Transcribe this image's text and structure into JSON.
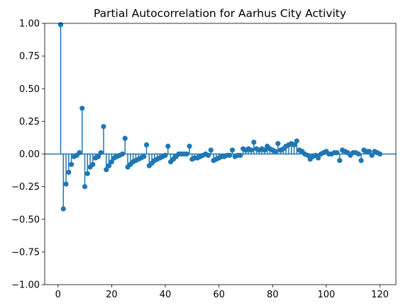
{
  "chart_data": {
    "type": "stem",
    "title": "Partial Autocorrelation for Aarhus City Activity",
    "xlabel": "",
    "ylabel": "",
    "xlim": [
      -4.95,
      125.95
    ],
    "ylim": [
      -1.0,
      1.0
    ],
    "xticks": [
      0,
      20,
      40,
      60,
      80,
      100,
      120
    ],
    "yticks": [
      -1.0,
      -0.75,
      -0.5,
      -0.25,
      0.0,
      0.25,
      0.5,
      0.75,
      1.0
    ],
    "xtick_labels": [
      "0",
      "20",
      "40",
      "60",
      "80",
      "100",
      "120"
    ],
    "ytick_labels": [
      "−1.00",
      "−0.75",
      "−0.50",
      "−0.25",
      "0.00",
      "0.25",
      "0.50",
      "0.75",
      "1.00"
    ],
    "grid": false,
    "color": "#1f77b4",
    "series": [
      {
        "x": [
          1,
          2,
          3,
          4,
          5,
          6,
          7,
          8,
          9,
          10,
          11,
          12,
          13,
          14,
          15,
          16,
          17,
          18,
          19,
          20,
          21,
          22,
          23,
          24,
          25,
          26,
          27,
          28,
          29,
          30,
          31,
          32,
          33,
          34,
          35,
          36,
          37,
          38,
          39,
          40,
          41,
          42,
          43,
          44,
          45,
          46,
          47,
          48,
          49,
          50,
          51,
          52,
          53,
          54,
          55,
          56,
          57,
          58,
          59,
          60,
          61,
          62,
          63,
          64,
          65,
          66,
          67,
          68,
          69,
          70,
          71,
          72,
          73,
          74,
          75,
          76,
          77,
          78,
          79,
          80,
          81,
          82,
          83,
          84,
          85,
          86,
          87,
          88,
          89,
          90,
          91,
          92,
          93,
          94,
          95,
          96,
          97,
          98,
          99,
          100,
          101,
          102,
          103,
          104,
          105,
          106,
          107,
          108,
          109,
          110,
          111,
          112,
          113,
          114,
          115,
          116,
          117,
          118,
          119,
          120
        ],
        "y": [
          0.99,
          -0.42,
          -0.23,
          -0.14,
          -0.08,
          -0.02,
          -0.01,
          0.01,
          0.35,
          -0.25,
          -0.15,
          -0.1,
          -0.08,
          -0.03,
          -0.02,
          0.01,
          0.21,
          -0.12,
          -0.09,
          -0.06,
          -0.03,
          -0.02,
          -0.01,
          0.0,
          0.12,
          -0.1,
          -0.08,
          -0.06,
          -0.05,
          -0.04,
          -0.03,
          -0.02,
          0.07,
          -0.09,
          -0.07,
          -0.05,
          -0.04,
          -0.03,
          -0.02,
          -0.01,
          0.06,
          -0.06,
          -0.04,
          -0.02,
          0.0,
          0.0,
          0.0,
          0.0,
          0.06,
          -0.04,
          -0.03,
          -0.03,
          -0.02,
          -0.01,
          0.0,
          -0.01,
          0.03,
          -0.05,
          -0.04,
          -0.03,
          -0.02,
          -0.02,
          -0.01,
          -0.01,
          0.03,
          -0.02,
          -0.01,
          -0.01,
          0.04,
          0.03,
          0.04,
          0.03,
          0.09,
          0.04,
          0.03,
          0.04,
          0.03,
          0.06,
          0.04,
          0.03,
          0.02,
          0.08,
          0.03,
          0.04,
          0.06,
          0.07,
          0.08,
          0.07,
          0.1,
          0.03,
          0.02,
          0.0,
          -0.01,
          -0.04,
          -0.02,
          -0.01,
          -0.03,
          0.0,
          0.01,
          0.02,
          0.0,
          0.0,
          0.01,
          0.01,
          -0.05,
          0.03,
          0.02,
          0.01,
          -0.01,
          0.01,
          0.01,
          0.0,
          -0.05,
          0.03,
          0.02,
          0.02,
          -0.01,
          0.02,
          0.01,
          0.0
        ]
      }
    ]
  }
}
